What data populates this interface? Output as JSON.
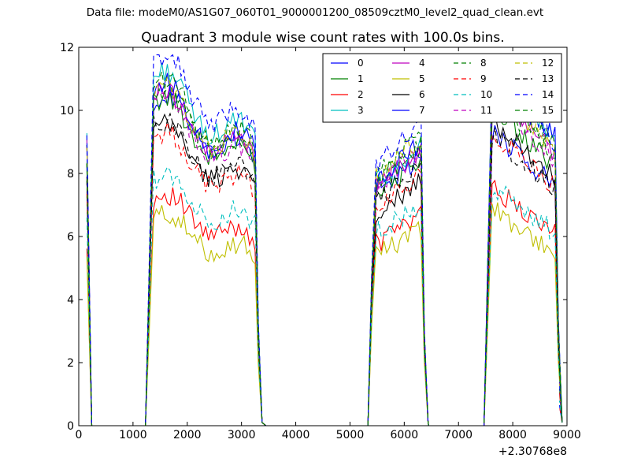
{
  "suptitle": "Data file: modeM0/AS1G07_060T01_9000001200_08509cztM0_level2_quad_clean.evt",
  "chart_data": {
    "type": "line",
    "title": "Quadrant 3 module wise count rates with 100.0s bins.",
    "xlabel": "",
    "ylabel": "",
    "x_offset_label": "+2.30768e8",
    "xlim": [
      0,
      9000
    ],
    "ylim": [
      0,
      12
    ],
    "xticks": [
      0,
      1000,
      2000,
      3000,
      4000,
      5000,
      6000,
      7000,
      8000,
      9000
    ],
    "yticks": [
      0,
      2,
      4,
      6,
      8,
      10,
      12
    ],
    "grid": false,
    "legend_position": "top-right",
    "legend_columns": 4,
    "segments": [
      {
        "x_start": 150,
        "x_end": 3450,
        "active_from": 1380,
        "active_to": 3250
      },
      {
        "x_start": 5350,
        "x_end": 6450,
        "active_from": 5480,
        "active_to": 6310
      },
      {
        "x_start": 7450,
        "x_end": 8860,
        "active_from": 7620,
        "active_to": 8780
      }
    ],
    "series": [
      {
        "name": "0",
        "color": "#0000ff",
        "style": "solid",
        "levels": [
          8.6,
          8.0,
          7.9
        ]
      },
      {
        "name": "1",
        "color": "#008000",
        "style": "solid",
        "levels": [
          8.5,
          7.9,
          8.5
        ]
      },
      {
        "name": "2",
        "color": "#ff0000",
        "style": "solid",
        "levels": [
          6.0,
          6.2,
          6.4
        ]
      },
      {
        "name": "3",
        "color": "#00bfbf",
        "style": "solid",
        "levels": [
          9.2,
          8.3,
          9.5
        ]
      },
      {
        "name": "4",
        "color": "#bf00bf",
        "style": "solid",
        "levels": [
          8.7,
          8.1,
          9.0
        ]
      },
      {
        "name": "5",
        "color": "#bfbf00",
        "style": "solid",
        "levels": [
          5.5,
          5.8,
          5.8
        ]
      },
      {
        "name": "6",
        "color": "#000000",
        "style": "solid",
        "levels": [
          7.8,
          7.3,
          8.2
        ]
      },
      {
        "name": "7",
        "color": "#0000ff",
        "style": "solid",
        "levels": [
          8.9,
          8.4,
          9.6
        ]
      },
      {
        "name": "8",
        "color": "#008000",
        "style": "dashed",
        "levels": [
          9.0,
          8.6,
          9.3
        ]
      },
      {
        "name": "9",
        "color": "#ff0000",
        "style": "dashed",
        "levels": [
          7.6,
          7.5,
          7.9
        ]
      },
      {
        "name": "10",
        "color": "#00bfbf",
        "style": "dashed",
        "levels": [
          6.5,
          6.6,
          6.4
        ]
      },
      {
        "name": "11",
        "color": "#bf00bf",
        "style": "dashed",
        "levels": [
          8.5,
          8.2,
          8.8
        ]
      },
      {
        "name": "12",
        "color": "#bfbf00",
        "style": "dashed",
        "levels": [
          8.8,
          8.5,
          9.1
        ]
      },
      {
        "name": "13",
        "color": "#000000",
        "style": "dashed",
        "levels": [
          7.9,
          7.7,
          7.8
        ]
      },
      {
        "name": "14",
        "color": "#0000ff",
        "style": "dashed",
        "levels": [
          9.6,
          8.9,
          9.4
        ]
      },
      {
        "name": "15",
        "color": "#008000",
        "style": "dashed",
        "levels": [
          8.7,
          8.3,
          8.9
        ]
      }
    ]
  }
}
